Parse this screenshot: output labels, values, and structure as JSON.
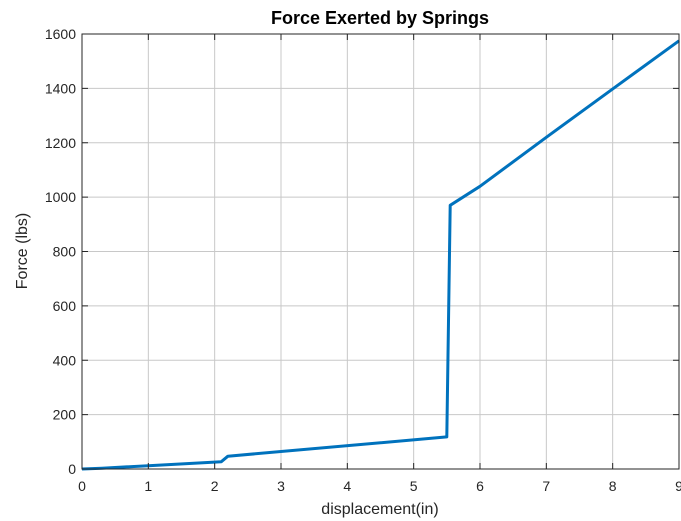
{
  "chart_data": {
    "type": "line",
    "title": "Force Exerted by Springs",
    "xlabel": "displacement(in)",
    "ylabel": "Force (lbs)",
    "xlim": [
      0,
      9
    ],
    "ylim": [
      0,
      1600
    ],
    "xticks": [
      0,
      1,
      2,
      3,
      4,
      5,
      6,
      7,
      8,
      9
    ],
    "yticks": [
      0,
      200,
      400,
      600,
      800,
      1000,
      1200,
      1400,
      1600
    ],
    "grid": true,
    "line_color": "#0072BD",
    "series": [
      {
        "x": [
          0,
          0.3,
          1,
          2.1,
          2.2,
          5.5,
          5.55,
          6,
          7,
          8,
          9
        ],
        "y": [
          0,
          3,
          12,
          27,
          47,
          118,
          970,
          1040,
          1220,
          1398,
          1575
        ]
      }
    ]
  }
}
